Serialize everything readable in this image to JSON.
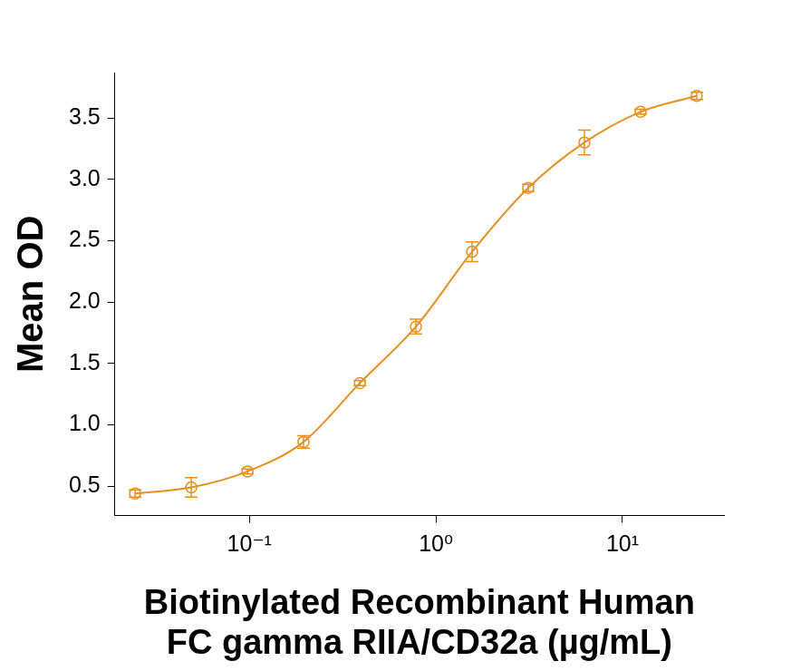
{
  "chart_data": {
    "type": "line",
    "x_label": [
      "Biotinylated Recombinant Human",
      "FC gamma RIIA/CD32a (µg/mL)"
    ],
    "y_label": "Mean OD",
    "x": [
      0.0244,
      0.0488,
      0.0977,
      0.195,
      0.391,
      0.781,
      1.5625,
      3.125,
      6.25,
      12.5,
      25
    ],
    "series": [
      {
        "name": "Biotinylated Recombinant Human FC gamma RIIA/CD32a",
        "color": "#e3901f",
        "values": [
          0.44,
          0.49,
          0.62,
          0.86,
          1.34,
          1.8,
          2.41,
          2.93,
          3.3,
          3.55,
          3.68
        ],
        "errors": [
          0.03,
          0.08,
          0.02,
          0.05,
          0.02,
          0.06,
          0.08,
          0.03,
          0.1,
          0.02,
          0.03
        ],
        "marker": "open_circle",
        "line_style": "solid"
      }
    ],
    "log": "x",
    "xlim": [
      0.019,
      35
    ],
    "xticks": [
      {
        "value": 0.1,
        "label": "10⁻¹"
      },
      {
        "value": 1,
        "label": "10⁰"
      },
      {
        "value": 10,
        "label": "10¹"
      }
    ],
    "ylim": [
      0.26,
      3.87
    ],
    "yticks": [
      0.5,
      {
        "value": 1,
        "label": "1.0"
      },
      1.5,
      {
        "value": 2,
        "label": "2.0"
      },
      2.5,
      {
        "value": 3,
        "label": "3.0"
      },
      3.5
    ],
    "grid": false,
    "tick_labels": true
  }
}
